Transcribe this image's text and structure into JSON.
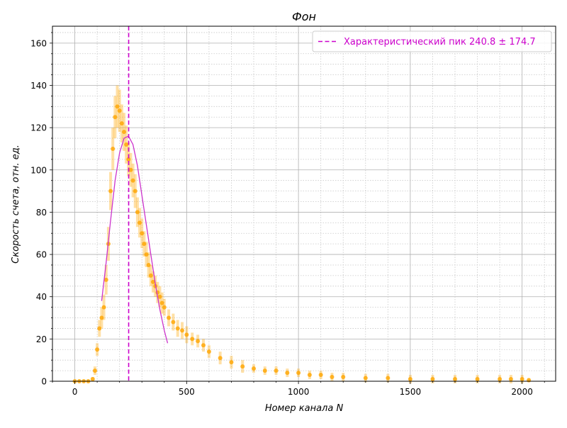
{
  "chart_data": {
    "type": "scatter",
    "title": "Фон",
    "xlabel": "Номер канала N",
    "ylabel": "Скорость счета,  отн. ед.",
    "xlim": [
      -100,
      2150
    ],
    "ylim": [
      0,
      168
    ],
    "xticks": [
      0,
      500,
      1000,
      1500,
      2000
    ],
    "xtick_labels": [
      "0",
      "500",
      "1000",
      "1500",
      "2000"
    ],
    "yticks": [
      0,
      20,
      40,
      60,
      80,
      100,
      120,
      140,
      160
    ],
    "ytick_labels": [
      "0",
      "20",
      "40",
      "60",
      "80",
      "100",
      "120",
      "140",
      "160"
    ],
    "grid": {
      "major": true,
      "minor": true
    },
    "legend": {
      "placement": "upper right",
      "entries": [
        {
          "label": "Характеристический пик 240.8 ± 174.7",
          "style": "dashed-line"
        }
      ]
    },
    "colors": {
      "data": "#ffa500",
      "fit": "#cc33cc",
      "peak_line": "#cc00cc",
      "grid_major": "#b0b0b0",
      "grid_minor": "#c8c8c8"
    },
    "series": [
      {
        "style": "points-with-errorbars",
        "x": [
          0,
          20,
          40,
          60,
          80,
          90,
          100,
          110,
          120,
          130,
          140,
          150,
          160,
          170,
          180,
          190,
          200,
          210,
          220,
          230,
          240,
          250,
          260,
          270,
          280,
          290,
          300,
          310,
          320,
          330,
          340,
          350,
          360,
          370,
          380,
          390,
          400,
          420,
          440,
          460,
          480,
          500,
          525,
          550,
          575,
          600,
          650,
          700,
          750,
          800,
          850,
          900,
          950,
          1000,
          1050,
          1100,
          1150,
          1200,
          1300,
          1400,
          1500,
          1600,
          1700,
          1800,
          1900,
          1950,
          2000,
          2030
        ],
        "y": [
          0,
          0,
          0,
          0,
          1,
          5,
          15,
          25,
          30,
          35,
          48,
          65,
          90,
          110,
          125,
          130,
          128,
          122,
          118,
          112,
          105,
          100,
          95,
          90,
          80,
          75,
          70,
          65,
          60,
          55,
          50,
          47,
          45,
          42,
          40,
          37,
          35,
          30,
          28,
          25,
          24,
          22,
          20,
          19,
          17,
          14,
          11,
          9,
          7,
          6,
          5,
          5,
          4,
          4,
          3,
          3,
          2,
          2,
          1.5,
          1.5,
          1,
          1,
          1,
          1,
          1,
          1,
          1,
          0.5
        ],
        "yerr": [
          0.5,
          0.5,
          0.5,
          0.5,
          1,
          2,
          3,
          4,
          5,
          6,
          7,
          8,
          9,
          10,
          10,
          10,
          10,
          9,
          9,
          9,
          8,
          8,
          8,
          8,
          7,
          7,
          7,
          6,
          6,
          6,
          5,
          5,
          5,
          5,
          5,
          5,
          4,
          4,
          4,
          4,
          4,
          4,
          3,
          3,
          3,
          3,
          3,
          3,
          3,
          2,
          2,
          2,
          2,
          2,
          2,
          2,
          2,
          2,
          2,
          2,
          2,
          2,
          2,
          2,
          2,
          2,
          2,
          1
        ]
      },
      {
        "style": "fit-curve",
        "x": [
          120,
          140,
          160,
          180,
          200,
          220,
          240,
          260,
          280,
          300,
          320,
          340,
          360,
          380,
          400,
          415
        ],
        "y": [
          38,
          56,
          76,
          95,
          108,
          115,
          116,
          112,
          102,
          88,
          74,
          60,
          46,
          34,
          24,
          18
        ]
      }
    ],
    "peak_line_x": 240.8
  }
}
